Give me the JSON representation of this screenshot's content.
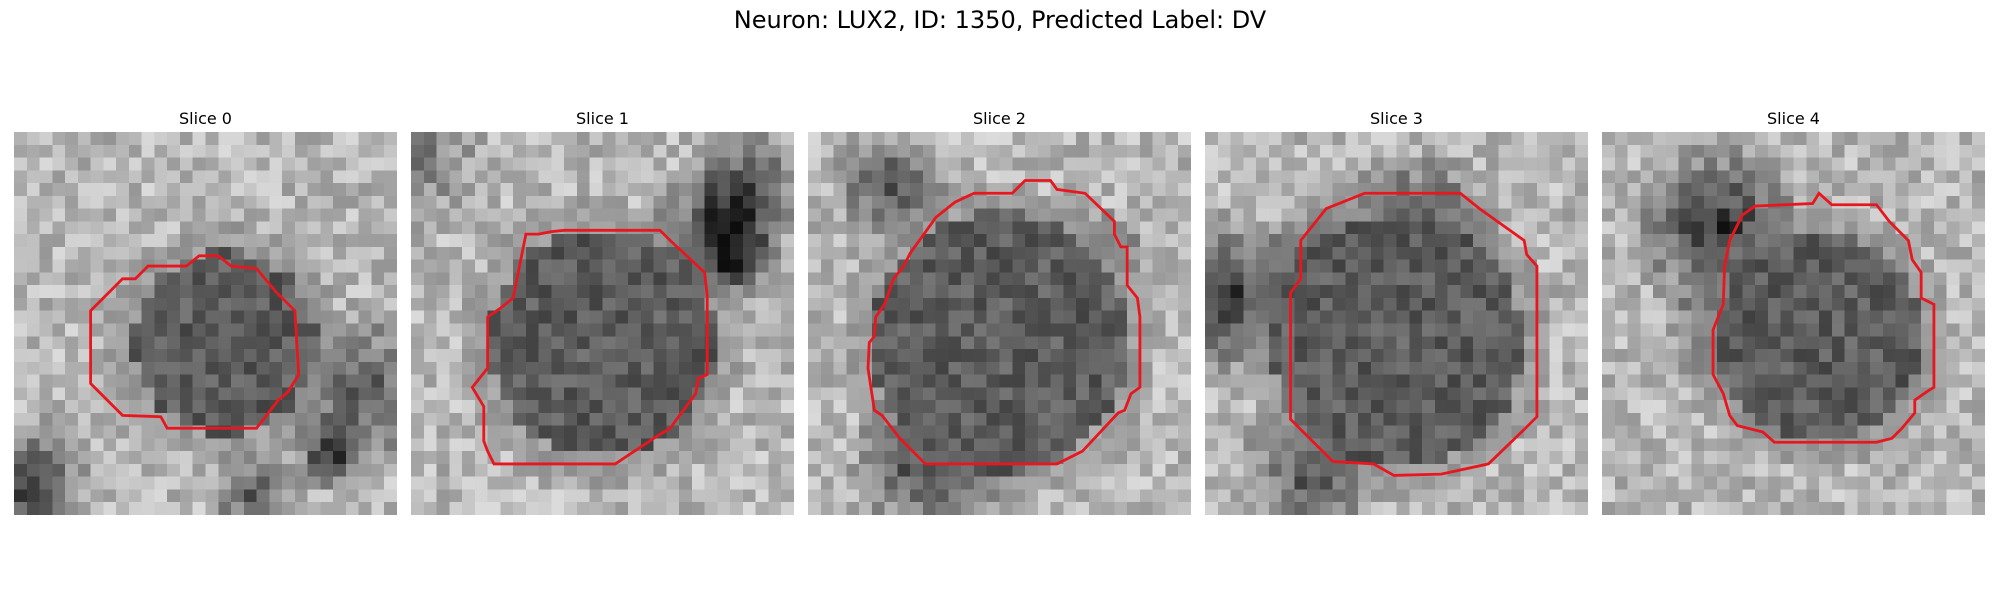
{
  "figure": {
    "title": "Neuron: LUX2, ID: 1350, Predicted Label: DV"
  },
  "panels": [
    {
      "title": "Slice 0",
      "image": "grayscale-microscopy-slice",
      "seed": 11,
      "cell_center": [
        0.55,
        0.55
      ],
      "cell_radius": 0.24
    },
    {
      "title": "Slice 1",
      "image": "grayscale-microscopy-slice",
      "seed": 23,
      "cell_center": [
        0.5,
        0.55
      ],
      "cell_radius": 0.3
    },
    {
      "title": "Slice 2",
      "image": "grayscale-microscopy-slice",
      "seed": 37,
      "cell_center": [
        0.5,
        0.55
      ],
      "cell_radius": 0.34
    },
    {
      "title": "Slice 3",
      "image": "grayscale-microscopy-slice",
      "seed": 41,
      "cell_center": [
        0.5,
        0.55
      ],
      "cell_radius": 0.33
    },
    {
      "title": "Slice 4",
      "image": "grayscale-microscopy-slice",
      "seed": 59,
      "cell_center": [
        0.57,
        0.53
      ],
      "cell_radius": 0.27
    }
  ],
  "colors": {
    "contour": "#e8171f"
  }
}
